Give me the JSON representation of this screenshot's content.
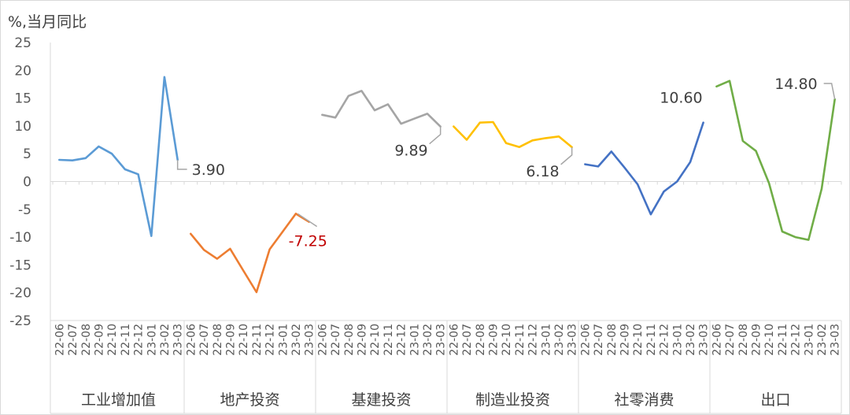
{
  "chart_data": {
    "type": "line",
    "ylabel": "%,当月同比",
    "ylim": [
      -25,
      25
    ],
    "yticks": [
      25,
      20,
      15,
      10,
      5,
      0,
      -5,
      -10,
      -15,
      -20,
      -25
    ],
    "negative_tick_color": "#c00000",
    "months": [
      "22-06",
      "22-07",
      "22-08",
      "22-09",
      "22-10",
      "22-11",
      "22-12",
      "23-01",
      "23-02",
      "23-03"
    ],
    "grid": false,
    "legend": "none",
    "series": [
      {
        "name": "工业增加值",
        "color": "#5b9bd5",
        "values": [
          3.9,
          3.8,
          4.2,
          6.3,
          5.0,
          2.2,
          1.3,
          -9.8,
          18.8,
          3.9
        ],
        "label": "3.90",
        "label_color": "#404040"
      },
      {
        "name": "地产投资",
        "color": "#ed7d31",
        "values": [
          -9.4,
          -12.3,
          -13.9,
          -12.1,
          -16.0,
          -19.9,
          -12.2,
          -9.0,
          -5.8,
          -7.25
        ],
        "label": "-7.25",
        "label_color": "#c00000"
      },
      {
        "name": "基建投资",
        "color": "#a5a5a5",
        "values": [
          12.0,
          11.5,
          15.4,
          16.3,
          12.8,
          13.9,
          10.4,
          11.3,
          12.2,
          9.89
        ],
        "label": "9.89",
        "label_color": "#404040"
      },
      {
        "name": "制造业投资",
        "color": "#ffc000",
        "values": [
          9.9,
          7.5,
          10.6,
          10.7,
          6.9,
          6.2,
          7.4,
          7.8,
          8.1,
          6.18
        ],
        "label": "6.18",
        "label_color": "#404040"
      },
      {
        "name": "社零消费",
        "color": "#4472c4",
        "values": [
          3.1,
          2.7,
          5.4,
          2.5,
          -0.5,
          -5.9,
          -1.8,
          0.0,
          3.5,
          10.6
        ],
        "label": "10.60",
        "label_color": "#404040"
      },
      {
        "name": "出口",
        "color": "#70ad47",
        "values": [
          17.1,
          18.1,
          7.3,
          5.5,
          -0.3,
          -9.0,
          -10.0,
          -10.5,
          -1.3,
          14.8
        ],
        "label": "14.80",
        "label_color": "#404040"
      }
    ]
  }
}
